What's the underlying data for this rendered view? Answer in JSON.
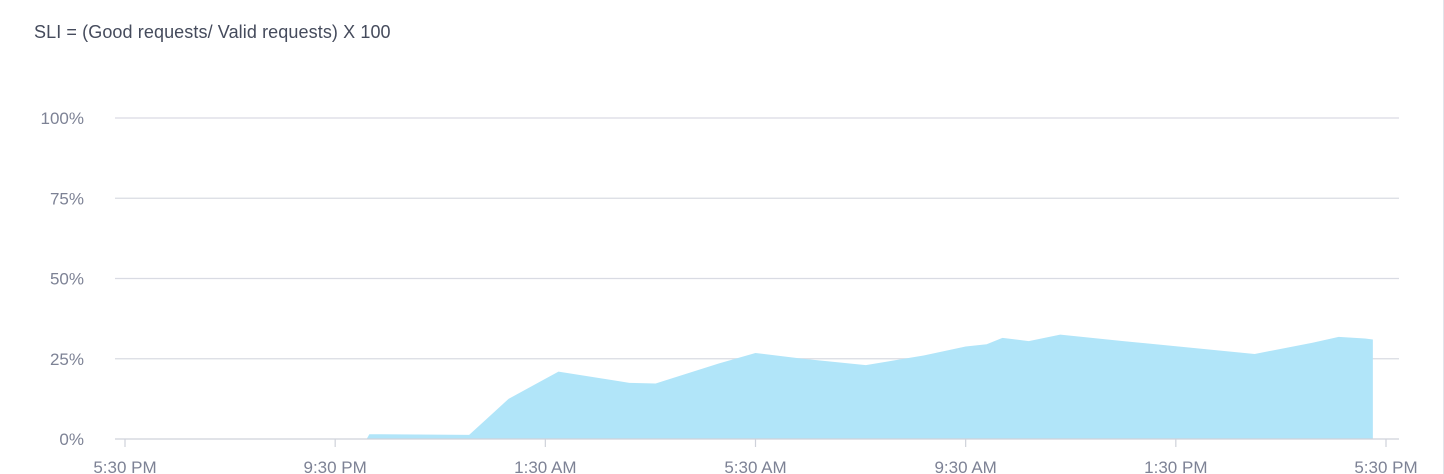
{
  "chart_data": {
    "type": "area",
    "title": "SLI = (Good requests/ Valid requests) X 100",
    "xlabel": "",
    "ylabel": "",
    "ylim": [
      0,
      100
    ],
    "y_ticks": [
      {
        "value": 0,
        "label": "0%"
      },
      {
        "value": 25,
        "label": "25%"
      },
      {
        "value": 50,
        "label": "50%"
      },
      {
        "value": 75,
        "label": "75%"
      },
      {
        "value": 100,
        "label": "100%"
      }
    ],
    "x_range_hours": [
      0,
      24
    ],
    "x_ticks": [
      {
        "hours": 0,
        "label": "5:30 PM"
      },
      {
        "hours": 4,
        "label": "9:30 PM"
      },
      {
        "hours": 8,
        "label": "1:30 AM"
      },
      {
        "hours": 12,
        "label": "5:30 AM"
      },
      {
        "hours": 16,
        "label": "9:30 AM"
      },
      {
        "hours": 20,
        "label": "1:30 PM"
      },
      {
        "hours": 24,
        "label": "5:30 PM"
      }
    ],
    "grid": true,
    "color": "#b1e5f9",
    "series": [
      {
        "name": "",
        "points": [
          {
            "hours": 0.0,
            "value": 0.0
          },
          {
            "hours": 4.6,
            "value": 0.0
          },
          {
            "hours": 4.65,
            "value": 1.5
          },
          {
            "hours": 6.55,
            "value": 1.3
          },
          {
            "hours": 6.9,
            "value": 6.5
          },
          {
            "hours": 7.3,
            "value": 12.5
          },
          {
            "hours": 8.25,
            "value": 21.0
          },
          {
            "hours": 9.6,
            "value": 17.5
          },
          {
            "hours": 10.1,
            "value": 17.3
          },
          {
            "hours": 11.3,
            "value": 23.5
          },
          {
            "hours": 12.0,
            "value": 26.8
          },
          {
            "hours": 12.9,
            "value": 25.0
          },
          {
            "hours": 14.1,
            "value": 23.0
          },
          {
            "hours": 15.2,
            "value": 26.0
          },
          {
            "hours": 16.0,
            "value": 28.8
          },
          {
            "hours": 16.4,
            "value": 29.5
          },
          {
            "hours": 16.7,
            "value": 31.5
          },
          {
            "hours": 17.2,
            "value": 30.5
          },
          {
            "hours": 17.8,
            "value": 32.5
          },
          {
            "hours": 19.0,
            "value": 30.5
          },
          {
            "hours": 21.5,
            "value": 26.5
          },
          {
            "hours": 22.6,
            "value": 30.0
          },
          {
            "hours": 23.1,
            "value": 31.8
          },
          {
            "hours": 23.6,
            "value": 31.3
          },
          {
            "hours": 23.75,
            "value": 31.0
          }
        ]
      }
    ]
  }
}
